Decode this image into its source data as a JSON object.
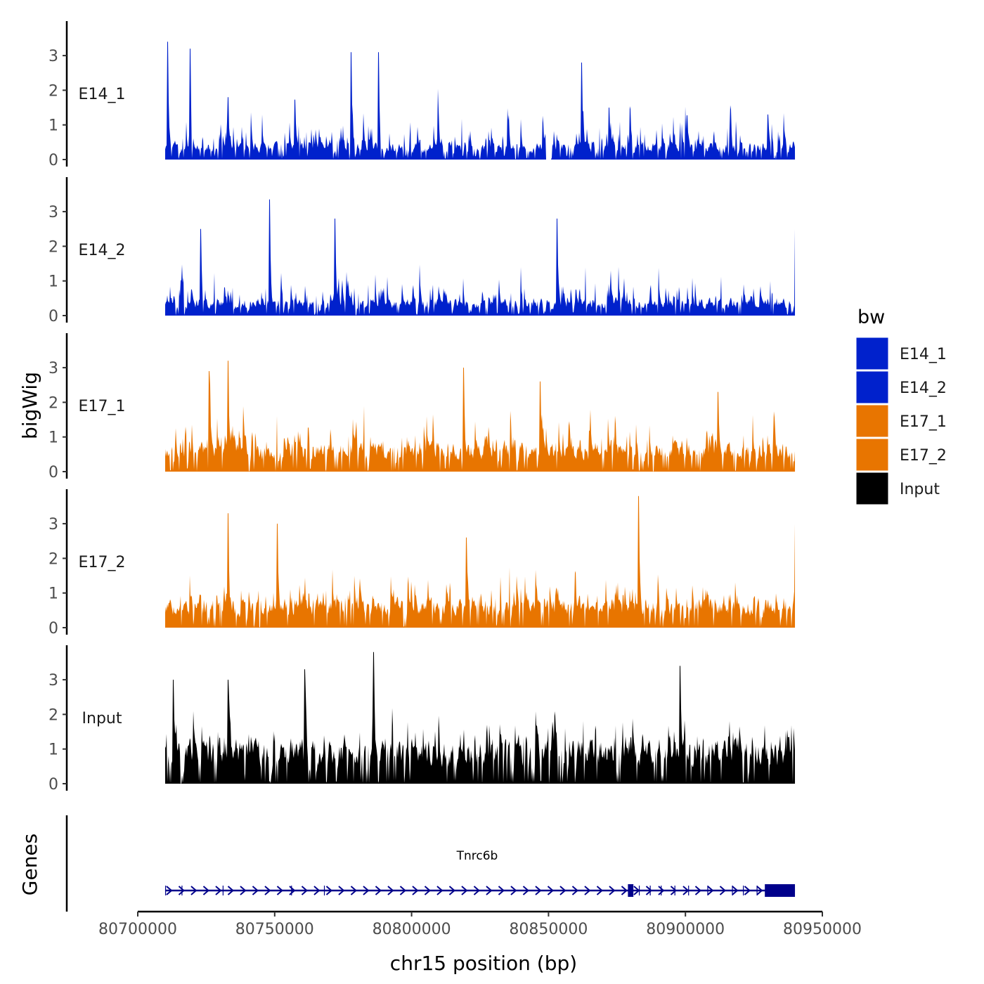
{
  "chart_data": {
    "type": "area",
    "description": "Genome browser style coverage tracks (bigWig) with gene annotation track",
    "chromosome": "chr15",
    "xlabel": "chr15 position (bp)",
    "ylabel": "bigWig",
    "gene_track_label": "Genes",
    "xlim": [
      80700000,
      80950000
    ],
    "data_range": [
      80710000,
      80940000
    ],
    "x_ticks": [
      80700000,
      80750000,
      80800000,
      80850000,
      80900000,
      80950000
    ],
    "x_tick_labels": [
      "80700000",
      "80750000",
      "80800000",
      "80850000",
      "80900000",
      "80950000"
    ],
    "ylim": [
      0,
      3.9
    ],
    "y_ticks": [
      0,
      1,
      2,
      3
    ],
    "y_tick_labels": [
      "0",
      "1",
      "2",
      "3"
    ],
    "legend": {
      "title": "bw",
      "position": "right",
      "entries": [
        {
          "name": "E14_1",
          "color": "#0021CC"
        },
        {
          "name": "E14_2",
          "color": "#0021CC"
        },
        {
          "name": "E17_1",
          "color": "#E87500"
        },
        {
          "name": "E17_2",
          "color": "#E87500"
        },
        {
          "name": "Input",
          "color": "#000000"
        }
      ]
    },
    "series": [
      {
        "name": "E14_1",
        "color": "#0021CC",
        "baseline": 0.35,
        "max": 3.4,
        "seed": 11,
        "peaks": [
          [
            80711000,
            3.4
          ],
          [
            80719000,
            3.2
          ],
          [
            80733000,
            1.8
          ],
          [
            80778000,
            3.1
          ],
          [
            80788000,
            3.1
          ],
          [
            80862000,
            2.8
          ],
          [
            80872000,
            1.5
          ],
          [
            80930000,
            1.3
          ]
        ],
        "gaps": [
          [
            80849000,
            80851000
          ]
        ]
      },
      {
        "name": "E14_2",
        "color": "#0021CC",
        "baseline": 0.35,
        "max": 3.35,
        "seed": 23,
        "peaks": [
          [
            80748000,
            3.35
          ],
          [
            80723000,
            2.5
          ],
          [
            80772000,
            2.8
          ],
          [
            80853000,
            2.8
          ],
          [
            80940000,
            2.5
          ]
        ],
        "gaps": []
      },
      {
        "name": "E17_1",
        "color": "#E87500",
        "baseline": 0.6,
        "max": 3.2,
        "seed": 37,
        "peaks": [
          [
            80733000,
            3.2
          ],
          [
            80726000,
            2.9
          ],
          [
            80819000,
            3.0
          ],
          [
            80847000,
            2.6
          ],
          [
            80912000,
            2.3
          ]
        ],
        "gaps": []
      },
      {
        "name": "E17_2",
        "color": "#E87500",
        "baseline": 0.6,
        "max": 3.8,
        "seed": 53,
        "peaks": [
          [
            80883000,
            3.8
          ],
          [
            80733000,
            3.3
          ],
          [
            80751000,
            3.0
          ],
          [
            80820000,
            2.6
          ],
          [
            80940000,
            3.0
          ]
        ],
        "gaps": []
      },
      {
        "name": "Input",
        "color": "#000000",
        "baseline": 0.9,
        "max": 3.8,
        "seed": 71,
        "peaks": [
          [
            80786000,
            3.8
          ],
          [
            80761000,
            3.3
          ],
          [
            80898000,
            3.4
          ],
          [
            80713000,
            3.0
          ],
          [
            80733000,
            3.0
          ]
        ],
        "gaps": []
      }
    ],
    "genes": [
      {
        "name": "Tnrc6b",
        "strand": "+",
        "color": "#00008B",
        "start": 80710000,
        "end": 80940000,
        "exons": [
          [
            80710000,
            80710300
          ],
          [
            80716000,
            80716100
          ],
          [
            80731000,
            80731100
          ],
          [
            80756000,
            80756100
          ],
          [
            80768000,
            80768100
          ],
          [
            80879000,
            80881000
          ],
          [
            80883000,
            80883200
          ],
          [
            80887000,
            80887200
          ],
          [
            80891000,
            80891200
          ],
          [
            80896000,
            80896200
          ],
          [
            80901000,
            80901200
          ],
          [
            80908000,
            80908200
          ],
          [
            80917000,
            80917200
          ],
          [
            80921000,
            80921200
          ],
          [
            80926000,
            80926200
          ],
          [
            80929000,
            80940000
          ]
        ]
      }
    ]
  }
}
